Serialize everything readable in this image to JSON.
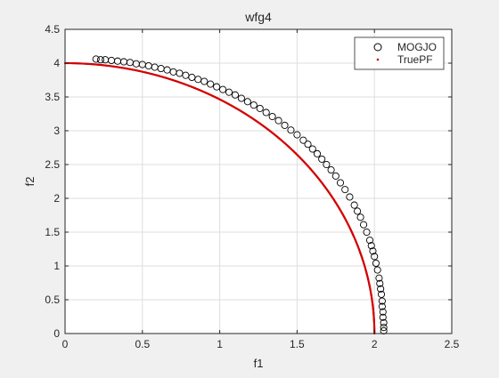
{
  "chart_data": {
    "type": "scatter",
    "title": "wfg4",
    "xlabel": "f1",
    "ylabel": "f2",
    "xlim": [
      0,
      2.5
    ],
    "ylim": [
      0,
      4.5
    ],
    "xticks": [
      0,
      0.5,
      1,
      1.5,
      2,
      2.5
    ],
    "xtick_labels": [
      "0",
      "0.5",
      "1",
      "1.5",
      "2",
      "2.5"
    ],
    "yticks": [
      0,
      0.5,
      1,
      1.5,
      2,
      2.5,
      3,
      3.5,
      4,
      4.5
    ],
    "ytick_labels": [
      "0",
      "0.5",
      "1",
      "1.5",
      "2",
      "2.5",
      "3",
      "3.5",
      "4",
      "4.5"
    ],
    "grid": true,
    "legend_position": "top-right",
    "series": [
      {
        "name": "MOGJO",
        "marker": "open-circle",
        "color": "#000000",
        "x": [
          0.2,
          0.23,
          0.26,
          0.3,
          0.34,
          0.38,
          0.42,
          0.46,
          0.5,
          0.54,
          0.58,
          0.62,
          0.66,
          0.7,
          0.74,
          0.78,
          0.82,
          0.86,
          0.9,
          0.94,
          0.98,
          1.02,
          1.06,
          1.1,
          1.14,
          1.18,
          1.22,
          1.26,
          1.3,
          1.34,
          1.38,
          1.42,
          1.46,
          1.5,
          1.54,
          1.57,
          1.6,
          1.63,
          1.66,
          1.69,
          1.72,
          1.75,
          1.78,
          1.81,
          1.84,
          1.87,
          1.89,
          1.91,
          1.93,
          1.95,
          1.97,
          1.98,
          1.99,
          2.0,
          2.01,
          2.02,
          2.03,
          2.035,
          2.04,
          2.045,
          2.05,
          2.05,
          2.055,
          2.055,
          2.06,
          2.06,
          2.06
        ],
        "y": [
          4.06,
          4.05,
          4.05,
          4.04,
          4.03,
          4.02,
          4.01,
          3.99,
          3.98,
          3.96,
          3.94,
          3.92,
          3.9,
          3.87,
          3.85,
          3.82,
          3.79,
          3.76,
          3.73,
          3.69,
          3.65,
          3.61,
          3.57,
          3.53,
          3.48,
          3.43,
          3.38,
          3.33,
          3.27,
          3.21,
          3.15,
          3.08,
          3.01,
          2.94,
          2.86,
          2.8,
          2.73,
          2.66,
          2.58,
          2.5,
          2.42,
          2.33,
          2.23,
          2.13,
          2.02,
          1.9,
          1.81,
          1.72,
          1.61,
          1.5,
          1.38,
          1.3,
          1.22,
          1.14,
          1.04,
          0.94,
          0.82,
          0.74,
          0.66,
          0.58,
          0.48,
          0.4,
          0.32,
          0.24,
          0.16,
          0.09,
          0.04
        ]
      },
      {
        "name": "TruePF",
        "marker": "dot",
        "color": "#d40000",
        "curve": "quarter-ellipse",
        "f1_max": 2,
        "f2_max": 4
      }
    ]
  }
}
